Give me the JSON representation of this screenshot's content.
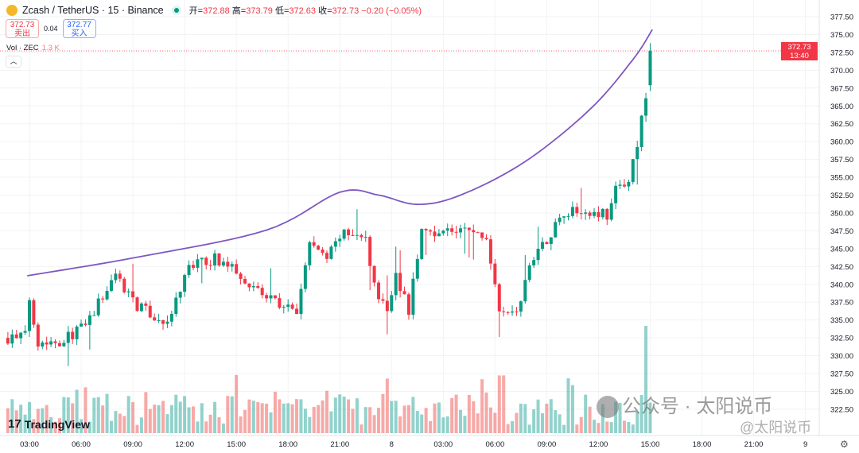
{
  "header": {
    "symbol": "Zcash / TetherUS · 15 · Binance",
    "open_label": "开=",
    "open": "372.88",
    "high_label": "高=",
    "high": "373.79",
    "low_label": "低=",
    "low": "372.63",
    "close_label": "收=",
    "close": "372.73",
    "change": "−0.20 (−0.05%)"
  },
  "trade": {
    "sell_price": "372.73",
    "sell_label": "卖出",
    "spread": "0.04",
    "buy_price": "372.77",
    "buy_label": "买入"
  },
  "volume": {
    "label": "Vol · ZEC",
    "value": "1.3 K"
  },
  "collapse_icon": "chevron-up-icon",
  "last_price": {
    "price": "372.73",
    "countdown": "13:40"
  },
  "logo": "TradingView",
  "watermark": {
    "text": "公众号 · 太阳说币",
    "sub": "@太阳说币"
  },
  "colors": {
    "up": "#089981",
    "down": "#f23645",
    "curve": "#7e57c2"
  },
  "chart_data": {
    "type": "candlestick",
    "interval_minutes": 15,
    "price_ticks": [
      "377.50",
      "375.00",
      "372.50",
      "370.00",
      "367.50",
      "365.00",
      "362.50",
      "360.00",
      "357.50",
      "355.00",
      "352.50",
      "350.00",
      "347.50",
      "345.00",
      "342.50",
      "340.00",
      "337.50",
      "335.00",
      "332.50",
      "330.00",
      "327.50",
      "325.00",
      "322.50"
    ],
    "ylim": [
      322.5,
      377.5
    ],
    "time_ticks": [
      {
        "label": "03:00",
        "i": 5
      },
      {
        "label": "06:00",
        "i": 17
      },
      {
        "label": "09:00",
        "i": 29
      },
      {
        "label": "12:00",
        "i": 41
      },
      {
        "label": "15:00",
        "i": 53
      },
      {
        "label": "18:00",
        "i": 65
      },
      {
        "label": "21:00",
        "i": 77
      },
      {
        "label": "8",
        "i": 89
      },
      {
        "label": "03:00",
        "i": 101
      },
      {
        "label": "06:00",
        "i": 113
      },
      {
        "label": "09:00",
        "i": 125
      },
      {
        "label": "12:00",
        "i": 137
      },
      {
        "label": "15:00",
        "i": 149
      },
      {
        "label": "18:00",
        "i": 161
      },
      {
        "label": "21:00",
        "i": 173
      },
      {
        "label": "9",
        "i": 185
      }
    ],
    "candle_count": 150,
    "close_path": [
      [
        0,
        332.5
      ],
      [
        4,
        332.8
      ],
      [
        5,
        338.1
      ],
      [
        7,
        332
      ],
      [
        12,
        332
      ],
      [
        18,
        334.2
      ],
      [
        25,
        341.4
      ],
      [
        30,
        337
      ],
      [
        37,
        334.2
      ],
      [
        42,
        342.5
      ],
      [
        48,
        343.6
      ],
      [
        53,
        342
      ],
      [
        59,
        338.6
      ],
      [
        67,
        335.9
      ],
      [
        70,
        345.9
      ],
      [
        74,
        343.6
      ],
      [
        77,
        347
      ],
      [
        83,
        346.4
      ],
      [
        85,
        339.7
      ],
      [
        88,
        336.4
      ],
      [
        90,
        341.4
      ],
      [
        93,
        336.4
      ],
      [
        96,
        347.5
      ],
      [
        101,
        347.5
      ],
      [
        107,
        347.5
      ],
      [
        111,
        346.4
      ],
      [
        114,
        337
      ],
      [
        118,
        335.9
      ],
      [
        122,
        344.2
      ],
      [
        125,
        346.4
      ],
      [
        129,
        350.3
      ],
      [
        136,
        350.3
      ],
      [
        139,
        349.8
      ],
      [
        141,
        353.1
      ],
      [
        144,
        354.8
      ],
      [
        146,
        359.3
      ],
      [
        148,
        366.5
      ],
      [
        149,
        372.73
      ]
    ],
    "curve": [
      [
        4.5,
        341.2
      ],
      [
        30,
        343.8
      ],
      [
        60,
        347.6
      ],
      [
        77,
        352.9
      ],
      [
        86,
        352.5
      ],
      [
        95,
        351.2
      ],
      [
        105,
        352.5
      ],
      [
        120,
        357.2
      ],
      [
        135,
        364.5
      ],
      [
        145,
        371.5
      ],
      [
        149.5,
        375.7
      ]
    ]
  }
}
